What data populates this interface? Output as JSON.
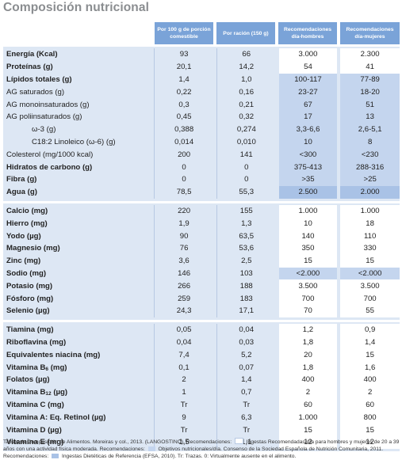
{
  "title": "Composición nutricional",
  "headers": [
    "Por 100 g de porción comestible",
    "Por ración (150 g)",
    "Recomendaciones día-hombres",
    "Recomendaciones día-mujeres"
  ],
  "groups": [
    {
      "rows": [
        {
          "name": "Energía (Kcal)",
          "bold": true,
          "v": [
            "93",
            "66",
            "3.000",
            "2.300"
          ],
          "hl": ""
        },
        {
          "name": "Proteínas (g)",
          "bold": true,
          "v": [
            "20,1",
            "14,2",
            "54",
            "41"
          ],
          "hl": ""
        },
        {
          "name": "Lípidos totales (g)",
          "bold": true,
          "v": [
            "1,4",
            "1,0",
            "100-117",
            "77-89"
          ],
          "hl": "hs"
        },
        {
          "name": "AG saturados (g)",
          "bold": false,
          "v": [
            "0,22",
            "0,16",
            "23-27",
            "18-20"
          ],
          "hl": "hs"
        },
        {
          "name": "AG monoinsaturados (g)",
          "bold": false,
          "v": [
            "0,3",
            "0,21",
            "67",
            "51"
          ],
          "hl": "hs"
        },
        {
          "name": "AG poliinsaturados (g)",
          "bold": false,
          "v": [
            "0,45",
            "0,32",
            "17",
            "13"
          ],
          "hl": "hs"
        },
        {
          "name": "ω-3 (g)",
          "bold": false,
          "ind": 2,
          "v": [
            "0,388",
            "0,274",
            "3,3-6,6",
            "2,6-5,1"
          ],
          "hl": "hs"
        },
        {
          "name": "C18:2 Linoleico (ω-6) (g)",
          "bold": false,
          "ind": 3,
          "v": [
            "0,014",
            "0,010",
            "10",
            "8"
          ],
          "hl": "hs"
        },
        {
          "name": "Colesterol (mg/1000 kcal)",
          "bold": false,
          "v": [
            "200",
            "141",
            "<300",
            "<230"
          ],
          "hl": "hs"
        },
        {
          "name": "Hidratos de carbono (g)",
          "bold": true,
          "v": [
            "0",
            "0",
            "375-413",
            "288-316"
          ],
          "hl": "hs"
        },
        {
          "name": "Fibra (g)",
          "bold": true,
          "v": [
            "0",
            "0",
            ">35",
            ">25"
          ],
          "hl": "hs"
        },
        {
          "name": "Agua (g)",
          "bold": true,
          "v": [
            "78,5",
            "55,3",
            "2.500",
            "2.000"
          ],
          "hl": "hl"
        }
      ]
    },
    {
      "rows": [
        {
          "name": "Calcio (mg)",
          "bold": true,
          "v": [
            "220",
            "155",
            "1.000",
            "1.000"
          ],
          "hl": ""
        },
        {
          "name": "Hierro (mg)",
          "bold": true,
          "v": [
            "1,9",
            "1,3",
            "10",
            "18"
          ],
          "hl": ""
        },
        {
          "name": "Yodo (µg)",
          "bold": true,
          "v": [
            "90",
            "63,5",
            "140",
            "110"
          ],
          "hl": ""
        },
        {
          "name": "Magnesio (mg)",
          "bold": true,
          "v": [
            "76",
            "53,6",
            "350",
            "330"
          ],
          "hl": ""
        },
        {
          "name": "Zinc (mg)",
          "bold": true,
          "v": [
            "3,6",
            "2,5",
            "15",
            "15"
          ],
          "hl": ""
        },
        {
          "name": "Sodio (mg)",
          "bold": true,
          "v": [
            "146",
            "103",
            "<2.000",
            "<2.000"
          ],
          "hl": "hs"
        },
        {
          "name": "Potasio (mg)",
          "bold": true,
          "v": [
            "266",
            "188",
            "3.500",
            "3.500"
          ],
          "hl": ""
        },
        {
          "name": "Fósforo (mg)",
          "bold": true,
          "v": [
            "259",
            "183",
            "700",
            "700"
          ],
          "hl": ""
        },
        {
          "name": "Selenio (µg)",
          "bold": true,
          "v": [
            "24,3",
            "17,1",
            "70",
            "55"
          ],
          "hl": ""
        }
      ]
    },
    {
      "rows": [
        {
          "name": "Tiamina (mg)",
          "bold": true,
          "v": [
            "0,05",
            "0,04",
            "1,2",
            "0,9"
          ],
          "hl": ""
        },
        {
          "name": "Riboflavina (mg)",
          "bold": true,
          "v": [
            "0,04",
            "0,03",
            "1,8",
            "1,4"
          ],
          "hl": ""
        },
        {
          "name": "Equivalentes niacina (mg)",
          "bold": true,
          "v": [
            "7,4",
            "5,2",
            "20",
            "15"
          ],
          "hl": ""
        },
        {
          "name": "Vitamina B",
          "sub": "6",
          "tail": " (mg)",
          "bold": true,
          "v": [
            "0,1",
            "0,07",
            "1,8",
            "1,6"
          ],
          "hl": ""
        },
        {
          "name": "Folatos (µg)",
          "bold": true,
          "v": [
            "2",
            "1,4",
            "400",
            "400"
          ],
          "hl": ""
        },
        {
          "name": "Vitamina B",
          "sub": "12",
          "tail": " (µg)",
          "bold": true,
          "v": [
            "1",
            "0,7",
            "2",
            "2"
          ],
          "hl": ""
        },
        {
          "name": "Vitamina C (mg)",
          "bold": true,
          "v": [
            "Tr",
            "Tr",
            "60",
            "60"
          ],
          "hl": ""
        },
        {
          "name": "Vitamina A: Eq. Retinol (µg)",
          "bold": true,
          "v": [
            "9",
            "6,3",
            "1.000",
            "800"
          ],
          "hl": ""
        },
        {
          "name": "Vitamina D (µg)",
          "bold": true,
          "v": [
            "Tr",
            "Tr",
            "15",
            "15"
          ],
          "hl": ""
        },
        {
          "name": "Vitamina E (mg)",
          "bold": true,
          "v": [
            "1,5",
            "1,1",
            "12",
            "12"
          ],
          "hl": ""
        }
      ]
    }
  ],
  "notes": {
    "part1": "Tablas de Composición de Alimentos. Moreiras y col., 2013. (LANGOSTINO). Recomendaciones:",
    "part2": "Ingestas Recomendadas/día para hombres y mujeres de 20 a 39 años con una actividad física moderada. Recomendaciones:",
    "part3": "Objetivos nutricionales/día. Consenso de la Sociedad Española de Nutrición Comunitaria, 2011. Recomendaciones:",
    "part4": "Ingestas Dietéticas de Referencia (EFSA, 2010). Tr: Trazas. 0: Virtualmente ausente en el alimento.",
    "color_ir": "#ffffff",
    "color_on": "#c4d5ee",
    "color_idr": "#a9c2e6"
  }
}
